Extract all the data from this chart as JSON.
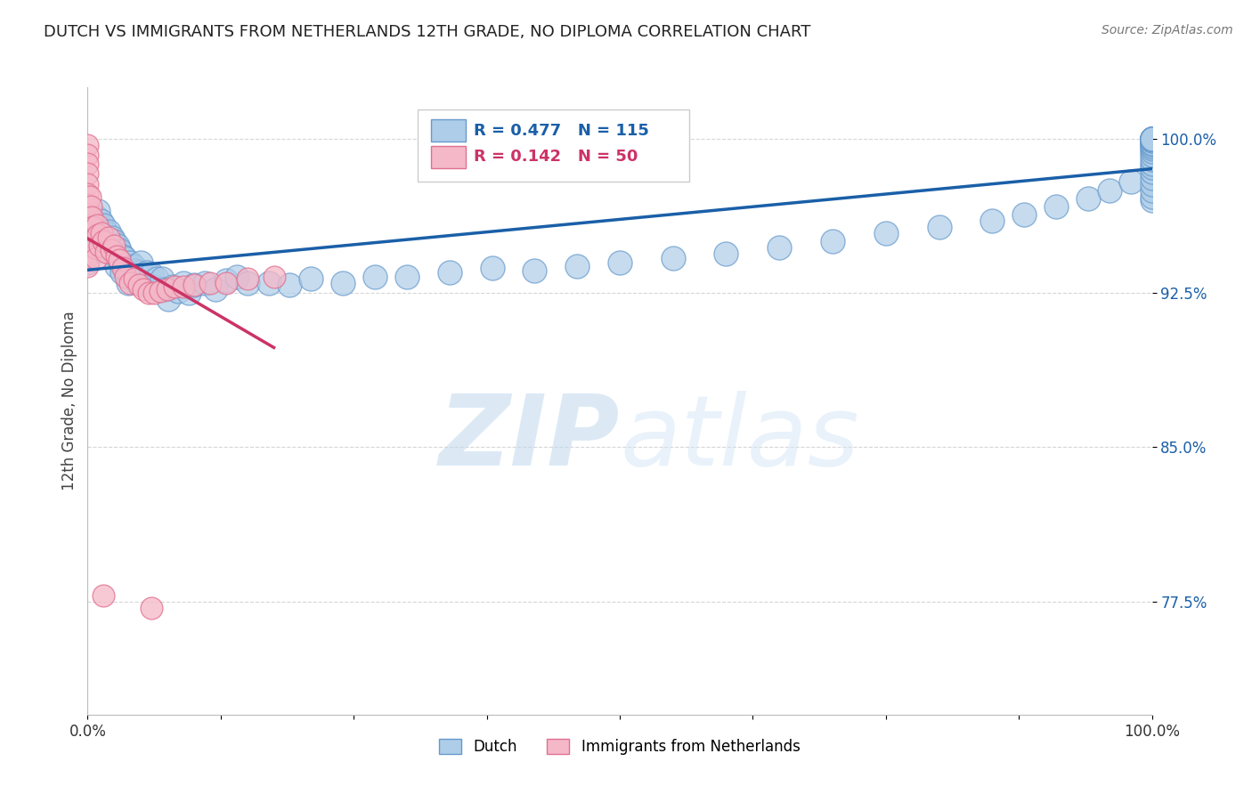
{
  "title": "DUTCH VS IMMIGRANTS FROM NETHERLANDS 12TH GRADE, NO DIPLOMA CORRELATION CHART",
  "source": "Source: ZipAtlas.com",
  "ylabel": "12th Grade, No Diploma",
  "xlim": [
    0.0,
    1.0
  ],
  "ylim": [
    0.72,
    1.025
  ],
  "yticks": [
    0.775,
    0.85,
    0.925,
    1.0
  ],
  "ytick_labels": [
    "77.5%",
    "85.0%",
    "92.5%",
    "100.0%"
  ],
  "watermark_zip": "ZIP",
  "watermark_atlas": "atlas",
  "legend_dutch_R": "R = 0.477",
  "legend_dutch_N": "N = 115",
  "legend_imm_R": "R = 0.142",
  "legend_imm_N": "N = 50",
  "dutch_label": "Dutch",
  "imm_label": "Immigrants from Netherlands",
  "dutch_face": "#aecde8",
  "dutch_edge": "#6699cc",
  "imm_face": "#f5b8c8",
  "imm_edge": "#e07090",
  "dutch_line_color": "#1a5fa8",
  "imm_line_color": "#cc3366",
  "bg_color": "#ffffff",
  "grid_color": "#cccccc",
  "title_color": "#222222",
  "ylabel_color": "#444444",
  "ytick_color": "#1a5fa8",
  "source_color": "#777777",
  "dutch_x": [
    0.0,
    0.0,
    0.0,
    0.0,
    0.003,
    0.005,
    0.006,
    0.008,
    0.009,
    0.01,
    0.01,
    0.012,
    0.013,
    0.014,
    0.015,
    0.016,
    0.017,
    0.018,
    0.019,
    0.02,
    0.021,
    0.022,
    0.023,
    0.025,
    0.026,
    0.027,
    0.028,
    0.03,
    0.031,
    0.032,
    0.033,
    0.035,
    0.036,
    0.038,
    0.04,
    0.041,
    0.043,
    0.045,
    0.047,
    0.049,
    0.05,
    0.052,
    0.054,
    0.056,
    0.058,
    0.06,
    0.062,
    0.065,
    0.068,
    0.07,
    0.073,
    0.076,
    0.08,
    0.085,
    0.09,
    0.095,
    0.1,
    0.11,
    0.12,
    0.13,
    0.14,
    0.15,
    0.17,
    0.19,
    0.21,
    0.24,
    0.27,
    0.3,
    0.34,
    0.38,
    0.42,
    0.46,
    0.5,
    0.55,
    0.6,
    0.65,
    0.7,
    0.75,
    0.8,
    0.85,
    0.88,
    0.91,
    0.94,
    0.96,
    0.98,
    1.0,
    1.0,
    1.0,
    1.0,
    1.0,
    1.0,
    1.0,
    1.0,
    1.0,
    1.0,
    1.0,
    1.0,
    1.0,
    1.0,
    1.0,
    1.0,
    1.0,
    1.0,
    1.0,
    1.0,
    1.0,
    1.0,
    1.0,
    1.0,
    1.0,
    1.0,
    1.0,
    1.0,
    1.0,
    1.0
  ],
  "dutch_y": [
    0.955,
    0.95,
    0.945,
    0.94,
    0.96,
    0.955,
    0.95,
    0.962,
    0.957,
    0.965,
    0.958,
    0.96,
    0.954,
    0.948,
    0.958,
    0.952,
    0.946,
    0.954,
    0.949,
    0.955,
    0.949,
    0.944,
    0.952,
    0.95,
    0.944,
    0.938,
    0.948,
    0.946,
    0.94,
    0.935,
    0.943,
    0.942,
    0.936,
    0.93,
    0.94,
    0.934,
    0.938,
    0.936,
    0.93,
    0.935,
    0.94,
    0.934,
    0.929,
    0.935,
    0.929,
    0.934,
    0.928,
    0.932,
    0.927,
    0.932,
    0.927,
    0.922,
    0.928,
    0.926,
    0.93,
    0.925,
    0.929,
    0.93,
    0.927,
    0.931,
    0.933,
    0.93,
    0.93,
    0.929,
    0.932,
    0.93,
    0.933,
    0.933,
    0.935,
    0.937,
    0.936,
    0.938,
    0.94,
    0.942,
    0.944,
    0.947,
    0.95,
    0.954,
    0.957,
    0.96,
    0.963,
    0.967,
    0.971,
    0.975,
    0.979,
    0.97,
    0.972,
    0.975,
    0.978,
    0.981,
    0.984,
    0.986,
    0.988,
    0.99,
    0.992,
    0.994,
    0.995,
    0.996,
    0.997,
    0.998,
    0.998,
    0.999,
    0.999,
    1.0,
    1.0,
    1.0,
    1.0,
    1.0,
    1.0,
    1.0,
    1.0,
    1.0,
    1.0,
    1.0,
    1.0
  ],
  "imm_x": [
    0.0,
    0.0,
    0.0,
    0.0,
    0.0,
    0.0,
    0.0,
    0.0,
    0.0,
    0.0,
    0.0,
    0.0,
    0.0,
    0.002,
    0.003,
    0.004,
    0.005,
    0.006,
    0.007,
    0.008,
    0.009,
    0.01,
    0.011,
    0.013,
    0.015,
    0.017,
    0.02,
    0.022,
    0.025,
    0.027,
    0.03,
    0.033,
    0.036,
    0.04,
    0.044,
    0.048,
    0.052,
    0.057,
    0.062,
    0.068,
    0.075,
    0.082,
    0.09,
    0.1,
    0.115,
    0.13,
    0.15,
    0.175,
    0.015,
    0.06
  ],
  "imm_y": [
    0.997,
    0.992,
    0.988,
    0.983,
    0.978,
    0.973,
    0.968,
    0.963,
    0.958,
    0.953,
    0.948,
    0.943,
    0.938,
    0.972,
    0.967,
    0.962,
    0.957,
    0.952,
    0.947,
    0.942,
    0.958,
    0.953,
    0.948,
    0.954,
    0.95,
    0.945,
    0.952,
    0.946,
    0.948,
    0.943,
    0.941,
    0.937,
    0.933,
    0.93,
    0.932,
    0.929,
    0.927,
    0.925,
    0.925,
    0.926,
    0.927,
    0.928,
    0.928,
    0.929,
    0.93,
    0.93,
    0.932,
    0.933,
    0.778,
    0.772
  ]
}
